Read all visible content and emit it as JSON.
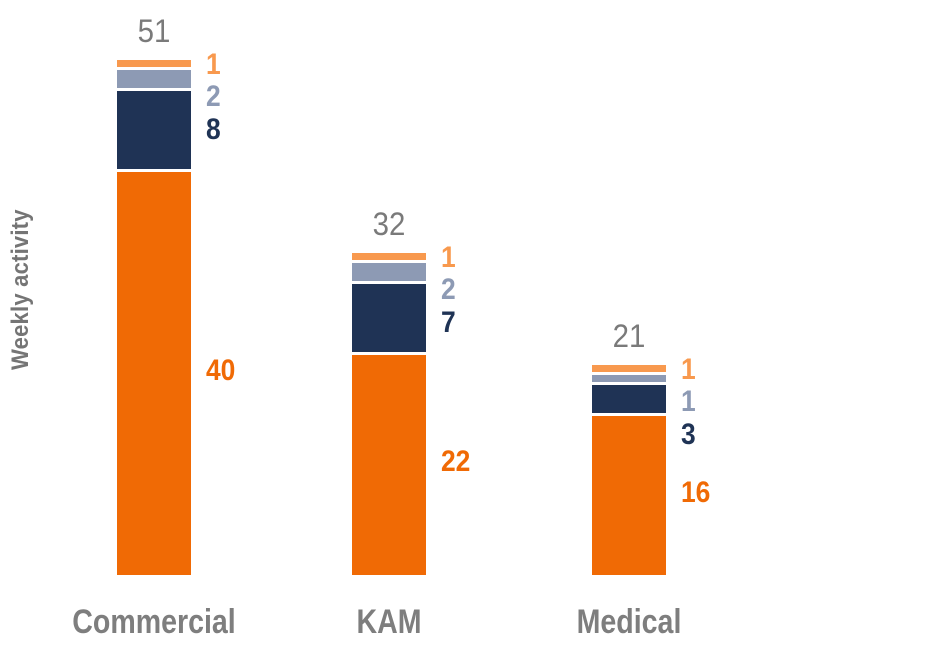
{
  "chart_data": {
    "type": "bar",
    "stacked": true,
    "title": "",
    "ylabel": "Weekly activity",
    "xlabel": "",
    "categories": [
      "Commercial",
      "KAM",
      "Medical"
    ],
    "totals": [
      51,
      32,
      21
    ],
    "series": [
      {
        "name": "orange-main",
        "color": "#F06A05",
        "values": [
          40,
          22,
          16
        ]
      },
      {
        "name": "navy",
        "color": "#1F3355",
        "values": [
          8,
          7,
          3
        ]
      },
      {
        "name": "blue-gray",
        "color": "#8D9AB4",
        "values": [
          2,
          2,
          1
        ]
      },
      {
        "name": "light-orange",
        "color": "#F8994E",
        "values": [
          1,
          1,
          1
        ]
      }
    ],
    "layout": {
      "legend": "none",
      "gridlines": false,
      "axes_hidden": true,
      "segment_gap_color": "#ffffff",
      "total_label_color": "#7a7a7a",
      "category_label_color": "#7e7e7e",
      "ylabel_color": "#757575"
    }
  }
}
